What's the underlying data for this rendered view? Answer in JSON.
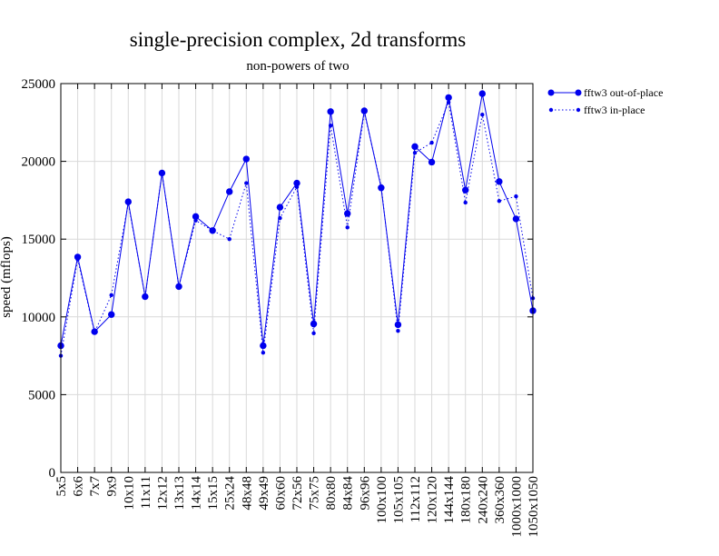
{
  "chart_data": {
    "type": "line",
    "title": "single-precision complex, 2d transforms",
    "subtitle": "non-powers of two",
    "xlabel": "",
    "ylabel": "speed (mflops)",
    "ylim": [
      0,
      25000
    ],
    "yticks": [
      0,
      5000,
      10000,
      15000,
      20000,
      25000
    ],
    "grid": true,
    "legend_position": "top-right-outside",
    "categories": [
      "5x5",
      "6x6",
      "7x7",
      "9x9",
      "10x10",
      "11x11",
      "12x12",
      "13x13",
      "14x14",
      "15x15",
      "25x24",
      "48x48",
      "49x49",
      "60x60",
      "72x56",
      "75x75",
      "80x80",
      "84x84",
      "96x96",
      "100x100",
      "105x105",
      "112x112",
      "120x120",
      "144x144",
      "180x180",
      "240x240",
      "360x360",
      "1000x1000",
      "1050x1050"
    ],
    "series": [
      {
        "name": "fftw3 out-of-place",
        "style": "solid",
        "color": "#0000ee",
        "values": [
          8150,
          13850,
          9050,
          10150,
          17400,
          11300,
          19250,
          11950,
          16450,
          15550,
          18050,
          20150,
          8150,
          17050,
          18600,
          9550,
          23200,
          16650,
          23250,
          18300,
          9500,
          20950,
          19950,
          24100,
          18150,
          24350,
          18700,
          16300,
          10400
        ]
      },
      {
        "name": "fftw3 in-place",
        "style": "dotted",
        "color": "#0000ee",
        "values": [
          7500,
          13700,
          9000,
          11400,
          17300,
          11300,
          19250,
          11950,
          16200,
          15550,
          15000,
          18600,
          7700,
          16350,
          18350,
          8950,
          22300,
          15750,
          23150,
          18400,
          9100,
          20550,
          21200,
          23800,
          17350,
          23000,
          17450,
          17750,
          11200
        ]
      }
    ]
  }
}
